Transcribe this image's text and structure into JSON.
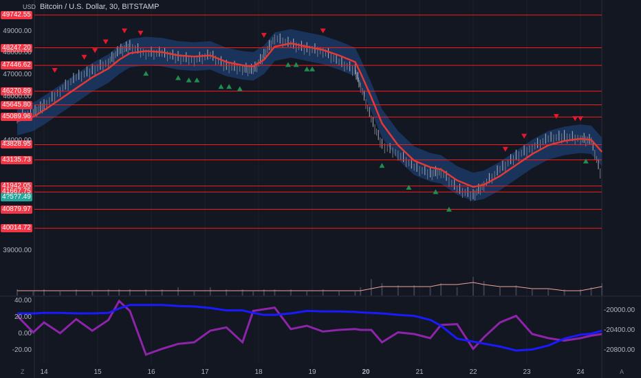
{
  "header": {
    "title": "Bitcoin / U.S. Dollar, 30, BITSTAMP",
    "currency": "USD"
  },
  "colors": {
    "background": "#131722",
    "level_line": "#ff1a1a",
    "price_tag": "#f23645",
    "ma_line": "#e53935",
    "band_fill": "#1c3d6e",
    "down_arrow": "#e8182c",
    "up_arrow": "#1e8f4e",
    "osc_purple": "#8e24aa",
    "osc_blue": "#1a1aff",
    "volume_line": "#f2a49a",
    "current_price_tag": "#26a69a"
  },
  "footer": {
    "left": "Z",
    "right": "A"
  },
  "chart_data": [
    {
      "type": "line",
      "panel": "price",
      "title": "Bitcoin / U.S. Dollar, 30, BITSTAMP",
      "x_tick_labels": [
        "14",
        "15",
        "16",
        "17",
        "18",
        "19",
        "20",
        "21",
        "22",
        "23",
        "24"
      ],
      "y_tick_labels": [
        "49000.00",
        "48000.00",
        "47000.00",
        "46000.00",
        "44000.00",
        "39000.00"
      ],
      "ylim": [
        38700,
        50000
      ],
      "price_levels": [
        "49742.55",
        "48247.20",
        "47446.62",
        "46270.89",
        "45645.80",
        "45089.96",
        "43828.95",
        "43135.73",
        "41942.05",
        "41667.75",
        "40879.97",
        "40014.72"
      ],
      "current_price_tag": "4?5?7.49",
      "x": [
        13.5,
        13.8,
        14.0,
        14.3,
        14.6,
        14.9,
        15.2,
        15.4,
        15.6,
        15.9,
        16.2,
        16.5,
        16.8,
        17.1,
        17.4,
        17.7,
        17.9,
        18.1,
        18.3,
        18.6,
        18.9,
        19.2,
        19.5,
        19.8,
        19.9,
        20.1,
        20.3,
        20.6,
        20.9,
        21.2,
        21.4,
        21.7,
        22.0,
        22.2,
        22.5,
        22.8,
        23.1,
        23.4,
        23.7,
        24.0,
        24.2,
        24.4
      ],
      "series": [
        {
          "role": "price",
          "values": [
            45100,
            45300,
            45600,
            46300,
            46900,
            47200,
            47600,
            48100,
            48300,
            48000,
            48000,
            47800,
            47700,
            47900,
            47400,
            47300,
            47200,
            47900,
            48700,
            48400,
            48200,
            48100,
            47600,
            47200,
            46500,
            45000,
            43800,
            43400,
            42800,
            42500,
            42600,
            41800,
            41500,
            42000,
            42700,
            43300,
            43700,
            44100,
            44200,
            44100,
            44000,
            42300
          ]
        },
        {
          "role": "moving-average",
          "values": [
            44900,
            45100,
            45400,
            45900,
            46400,
            46900,
            47300,
            47700,
            48000,
            48100,
            48050,
            47900,
            47850,
            47900,
            47600,
            47450,
            47400,
            47700,
            48300,
            48450,
            48300,
            48150,
            47900,
            47600,
            47100,
            46000,
            44800,
            43800,
            43100,
            42800,
            42700,
            42200,
            41900,
            42000,
            42400,
            42900,
            43400,
            43800,
            44000,
            44100,
            44050,
            43500
          ]
        }
      ],
      "down_markers_x": [
        14.2,
        14.75,
        14.95,
        15.15,
        15.5,
        15.8,
        18.1,
        19.2,
        22.6,
        22.95,
        23.55,
        23.9,
        24.0
      ],
      "up_markers_x": [
        15.9,
        16.5,
        16.7,
        16.85,
        17.3,
        17.45,
        17.65,
        18.55,
        18.7,
        18.9,
        19.0,
        20.3,
        20.8,
        21.3,
        21.55,
        24.1
      ]
    },
    {
      "type": "line",
      "panel": "oscillator",
      "x": [
        13.5,
        13.8,
        14.0,
        14.3,
        14.6,
        14.9,
        15.2,
        15.4,
        15.6,
        15.9,
        16.2,
        16.5,
        16.8,
        17.1,
        17.4,
        17.7,
        17.9,
        18.1,
        18.3,
        18.6,
        18.9,
        19.2,
        19.5,
        19.8,
        19.9,
        20.1,
        20.3,
        20.6,
        20.9,
        21.2,
        21.4,
        21.7,
        22.0,
        22.2,
        22.5,
        22.8,
        23.1,
        23.4,
        23.7,
        24.0,
        24.2,
        24.4
      ],
      "left_axis_ticks": [
        "40.00",
        "20.00",
        "0.00",
        "-20.00"
      ],
      "left_axis_range": [
        -35,
        45
      ],
      "right_axis_ticks": [
        "-20000.00",
        "-20400.00",
        "-20800.00"
      ],
      "right_axis_range": [
        -20950,
        -19800
      ],
      "series": [
        {
          "role": "purple oscillator",
          "axis": "left",
          "values": [
            22,
            2,
            14,
            1,
            18,
            4,
            17,
            40,
            28,
            -25,
            -18,
            -12,
            -10,
            4,
            8,
            -10,
            28,
            30,
            32,
            6,
            10,
            3,
            5,
            6,
            5,
            5,
            -10,
            2,
            0,
            -5,
            11,
            12,
            -18,
            -4,
            14,
            22,
            0,
            -5,
            -8,
            -5,
            -2,
            0
          ]
        },
        {
          "role": "blue cumulative line",
          "axis": "right",
          "values": [
            -20050,
            -20050,
            -20040,
            -20040,
            -20050,
            -20050,
            -20040,
            -19950,
            -19880,
            -19880,
            -19880,
            -19900,
            -19910,
            -19940,
            -19990,
            -19990,
            -20040,
            -20080,
            -20080,
            -20050,
            -20000,
            -20010,
            -20010,
            -20020,
            -20030,
            -20040,
            -20050,
            -20080,
            -20100,
            -20180,
            -20300,
            -20560,
            -20620,
            -20660,
            -20720,
            -20800,
            -20780,
            -20700,
            -20560,
            -20480,
            -20460,
            -20400
          ]
        }
      ]
    },
    {
      "type": "bar",
      "panel": "volume",
      "x": [
        13.5,
        13.8,
        14.0,
        14.3,
        14.6,
        14.9,
        15.2,
        15.4,
        15.6,
        15.9,
        16.2,
        16.5,
        16.8,
        17.1,
        17.4,
        17.7,
        17.9,
        18.1,
        18.3,
        18.6,
        18.9,
        19.2,
        19.5,
        19.8,
        19.9,
        20.1,
        20.3,
        20.6,
        20.9,
        21.2,
        21.4,
        21.7,
        22.0,
        22.2,
        22.5,
        22.8,
        23.1,
        23.4,
        23.7,
        24.0,
        24.2,
        24.4
      ],
      "values": [
        3,
        2,
        3,
        2,
        3,
        2,
        3,
        3,
        3,
        3,
        3,
        4,
        2,
        4,
        3,
        3,
        2,
        3,
        3,
        3,
        2,
        3,
        2,
        2,
        4,
        8,
        6,
        5,
        5,
        4,
        6,
        4,
        9,
        7,
        4,
        5,
        3,
        3,
        3,
        3,
        4,
        6
      ],
      "moving_average": [
        2,
        2,
        2,
        2,
        2,
        2,
        2,
        2,
        2,
        2,
        2,
        2,
        2,
        2,
        2,
        2,
        2,
        2,
        2,
        2,
        2,
        2,
        2,
        2,
        2,
        3,
        4,
        4,
        4,
        4,
        5,
        5,
        6,
        5,
        4,
        4,
        3,
        3,
        2,
        2,
        3,
        4
      ]
    }
  ]
}
